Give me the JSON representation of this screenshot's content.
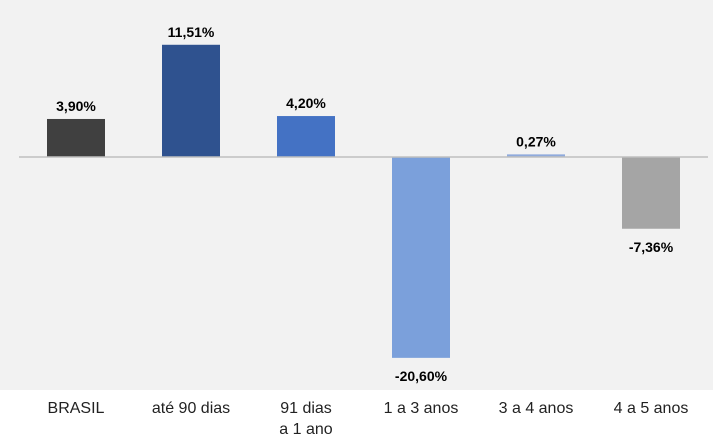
{
  "chart_data": {
    "type": "bar",
    "categories": [
      "BRASIL",
      "até 90 dias",
      "91 dias a 1 ano",
      "1 a 3 anos",
      "3 a 4 anos",
      "4 a 5 anos"
    ],
    "category_lines": [
      [
        "BRASIL"
      ],
      [
        "até 90 dias"
      ],
      [
        "91 dias",
        "a 1 ano"
      ],
      [
        "1 a 3 anos"
      ],
      [
        "3 a 4 anos"
      ],
      [
        "4 a 5 anos"
      ]
    ],
    "values": [
      3.9,
      11.51,
      4.2,
      -20.6,
      0.27,
      -7.36
    ],
    "value_labels": [
      "3,90%",
      "11,51%",
      "4,20%",
      "-20,60%",
      "0,27%",
      "-7,36%"
    ],
    "bar_colors": [
      "#404040",
      "#2f528f",
      "#4472c4",
      "#7ba0db",
      "#8faadc",
      "#a5a5a5"
    ],
    "ylim": [
      -21,
      12
    ],
    "grid": false,
    "legend": "none",
    "title": "",
    "xlabel": "",
    "ylabel": ""
  },
  "colors": {
    "panel_background": "#f2f2f2",
    "zero_line": "#bfbfbf"
  }
}
